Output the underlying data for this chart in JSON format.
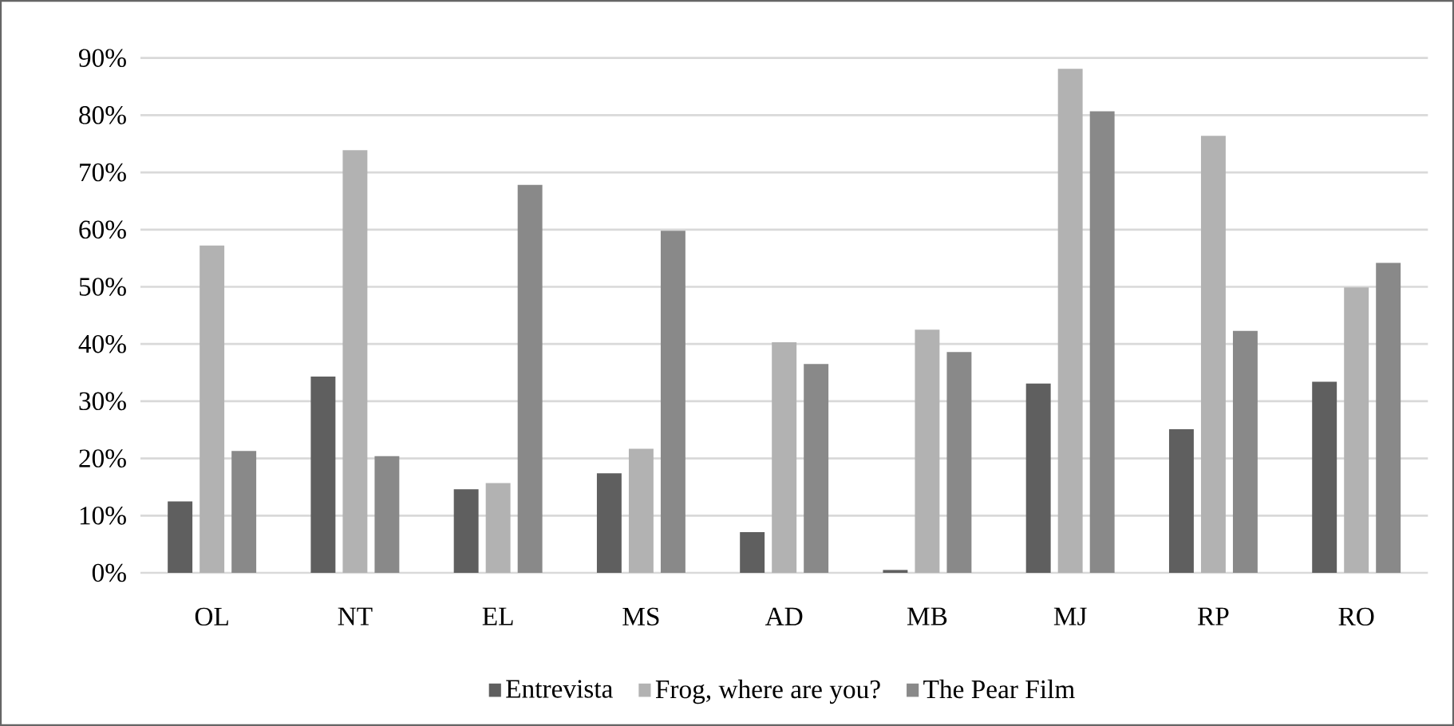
{
  "chart_data": {
    "type": "bar",
    "categories": [
      "OL",
      "NT",
      "EL",
      "MS",
      "AD",
      "MB",
      "MJ",
      "RP",
      "RO"
    ],
    "series": [
      {
        "name": "Entrevista",
        "color": "#5f5f5f",
        "values": [
          12.5,
          34.3,
          14.6,
          17.4,
          7.1,
          0.5,
          33.1,
          25.1,
          33.4
        ]
      },
      {
        "name": "Frog, where are you?",
        "color": "#b2b2b2",
        "values": [
          57.2,
          73.9,
          15.7,
          21.7,
          40.3,
          42.5,
          88.1,
          76.4,
          49.9
        ]
      },
      {
        "name": "The Pear Film",
        "color": "#898989",
        "values": [
          21.3,
          20.4,
          67.8,
          59.8,
          36.5,
          38.6,
          80.7,
          42.3,
          54.2
        ]
      }
    ],
    "ylim": [
      0,
      90
    ],
    "yticks": [
      {
        "value": 0,
        "label": "0%"
      },
      {
        "value": 10,
        "label": "10%"
      },
      {
        "value": 20,
        "label": "20%"
      },
      {
        "value": 30,
        "label": "30%"
      },
      {
        "value": 40,
        "label": "40%"
      },
      {
        "value": 50,
        "label": "50%"
      },
      {
        "value": 60,
        "label": "60%"
      },
      {
        "value": 70,
        "label": "70%"
      },
      {
        "value": 80,
        "label": "80%"
      },
      {
        "value": 90,
        "label": "90%"
      }
    ],
    "grid": "y",
    "legend": "bottom"
  }
}
